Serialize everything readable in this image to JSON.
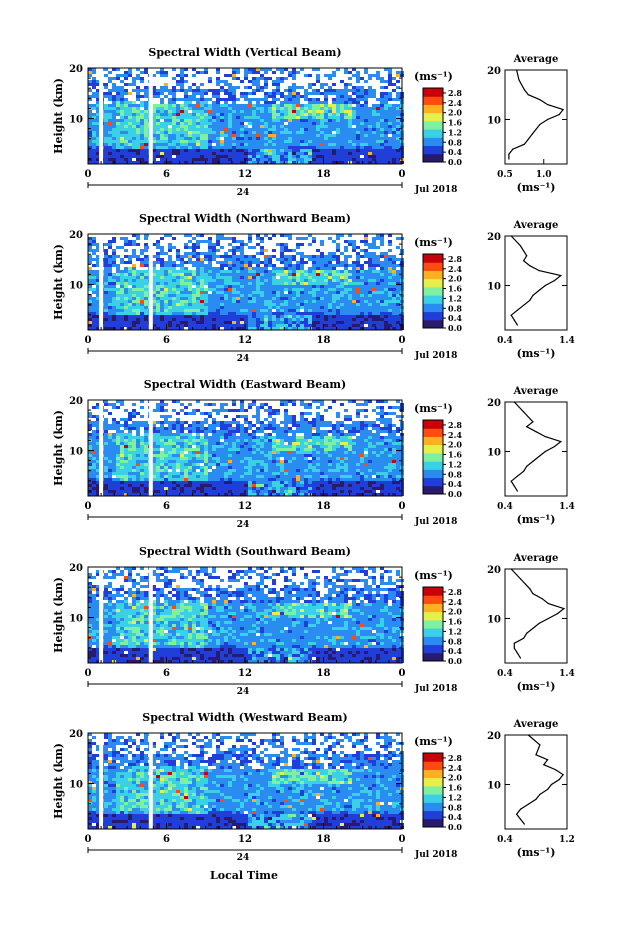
{
  "figure": {
    "xlabel": "Local Time",
    "date_label": "Jul 2018",
    "day_label": "24",
    "ylabel": "Height (km)",
    "unit_label": "(ms⁻¹)",
    "profile_title": "Average",
    "profile_xlabel": "(ms⁻¹)"
  },
  "colorbar": {
    "ticks": [
      "2.8",
      "2.4",
      "2.0",
      "1.6",
      "1.2",
      "0.8",
      "0.4",
      "0.0"
    ],
    "range": [
      0,
      3.0
    ],
    "colors": [
      "#2a1a6e",
      "#1f3fd8",
      "#2a8cf0",
      "#3ad0e6",
      "#7ff0a0",
      "#e6f04a",
      "#ffb020",
      "#ff4a10",
      "#c8000a"
    ]
  },
  "chart_data": [
    {
      "type": "heatmap",
      "title": "Spectral Width (Vertical Beam)",
      "xlabel": "Local Time",
      "ylabel": "Height (km)",
      "xticks": [
        "0",
        "6",
        "12",
        "18",
        "0"
      ],
      "yticks": [
        "20",
        "10"
      ],
      "xlim": [
        0,
        24
      ],
      "ylim": [
        1,
        20
      ],
      "gaps_local_time": [
        1.0,
        4.8
      ],
      "profile": {
        "title": "Average",
        "xlabel": "(ms⁻¹)",
        "xticks": [
          "0.5",
          "1.0"
        ],
        "yticks": [
          "20",
          "10"
        ],
        "xlim": [
          0.5,
          1.3
        ],
        "height": [
          20,
          18,
          16,
          15,
          14,
          13,
          12,
          11,
          10,
          9,
          8,
          7,
          6,
          5,
          4,
          3,
          2
        ],
        "width": [
          0.65,
          0.68,
          0.75,
          0.8,
          0.95,
          1.05,
          1.25,
          1.2,
          1.05,
          0.95,
          0.9,
          0.85,
          0.8,
          0.75,
          0.6,
          0.55,
          0.55
        ]
      }
    },
    {
      "type": "heatmap",
      "title": "Spectral Width (Northward Beam)",
      "xlabel": "Local Time",
      "ylabel": "Height (km)",
      "xticks": [
        "0",
        "6",
        "12",
        "18",
        "0"
      ],
      "yticks": [
        "20",
        "10"
      ],
      "xlim": [
        0,
        24
      ],
      "ylim": [
        1,
        20
      ],
      "gaps_local_time": [
        1.0,
        4.8
      ],
      "profile": {
        "title": "Average",
        "xlabel": "(ms⁻¹)",
        "xticks": [
          "0.4",
          "1.4"
        ],
        "yticks": [
          "20",
          "10"
        ],
        "xlim": [
          0.4,
          1.4
        ],
        "height": [
          20,
          18,
          16,
          15,
          14,
          13,
          12,
          11,
          10,
          9,
          8,
          7,
          6,
          5,
          4,
          3,
          2
        ],
        "width": [
          0.5,
          0.65,
          0.75,
          0.7,
          0.8,
          0.95,
          1.3,
          1.2,
          1.05,
          0.95,
          0.85,
          0.8,
          0.7,
          0.6,
          0.5,
          0.55,
          0.6
        ]
      }
    },
    {
      "type": "heatmap",
      "title": "Spectral Width (Eastward Beam)",
      "xlabel": "Local Time",
      "ylabel": "Height (km)",
      "xticks": [
        "0",
        "6",
        "12",
        "18",
        "0"
      ],
      "yticks": [
        "20",
        "10"
      ],
      "xlim": [
        0,
        24
      ],
      "ylim": [
        1,
        20
      ],
      "gaps_local_time": [
        1.0,
        4.8
      ],
      "profile": {
        "title": "Average",
        "xlabel": "(ms⁻¹)",
        "xticks": [
          "0.4",
          "1.4"
        ],
        "yticks": [
          "20",
          "10"
        ],
        "xlim": [
          0.4,
          1.4
        ],
        "height": [
          20,
          18,
          16,
          15,
          14,
          13,
          12,
          11,
          10,
          9,
          8,
          7,
          6,
          5,
          4,
          3,
          2
        ],
        "width": [
          0.55,
          0.7,
          0.85,
          0.75,
          0.9,
          1.05,
          1.3,
          1.2,
          1.05,
          0.95,
          0.85,
          0.75,
          0.7,
          0.6,
          0.5,
          0.55,
          0.6
        ]
      }
    },
    {
      "type": "heatmap",
      "title": "Spectral Width (Southward Beam)",
      "xlabel": "Local Time",
      "ylabel": "Height (km)",
      "xticks": [
        "0",
        "6",
        "12",
        "18",
        "0"
      ],
      "yticks": [
        "20",
        "10"
      ],
      "xlim": [
        0,
        24
      ],
      "ylim": [
        1,
        20
      ],
      "gaps_local_time": [
        1.0,
        4.8
      ],
      "profile": {
        "title": "Average",
        "xlabel": "(ms⁻¹)",
        "xticks": [
          "0.4",
          "1.4"
        ],
        "yticks": [
          "20",
          "10"
        ],
        "xlim": [
          0.4,
          1.4
        ],
        "height": [
          20,
          18,
          16,
          15,
          14,
          13,
          12,
          11,
          10,
          9,
          8,
          7,
          6,
          5,
          4,
          3,
          2
        ],
        "width": [
          0.5,
          0.65,
          0.8,
          0.85,
          1.0,
          1.1,
          1.35,
          1.25,
          1.1,
          0.95,
          0.85,
          0.75,
          0.7,
          0.55,
          0.55,
          0.6,
          0.65
        ]
      }
    },
    {
      "type": "heatmap",
      "title": "Spectral Width (Westward Beam)",
      "xlabel": "Local Time",
      "ylabel": "Height (km)",
      "xticks": [
        "0",
        "6",
        "12",
        "18",
        "0"
      ],
      "yticks": [
        "20",
        "10"
      ],
      "xlim": [
        0,
        24
      ],
      "ylim": [
        1,
        20
      ],
      "gaps_local_time": [
        1.0,
        4.8
      ],
      "profile": {
        "title": "Average",
        "xlabel": "(ms⁻¹)",
        "xticks": [
          "0.4",
          "1.2"
        ],
        "yticks": [
          "20",
          "10"
        ],
        "xlim": [
          0.4,
          1.2
        ],
        "height": [
          20,
          18,
          16,
          15,
          14,
          13,
          12,
          11,
          10,
          9,
          8,
          7,
          6,
          5,
          4,
          3,
          2
        ],
        "width": [
          0.7,
          0.85,
          0.8,
          0.95,
          0.9,
          1.05,
          1.15,
          1.1,
          1.0,
          0.95,
          0.85,
          0.8,
          0.7,
          0.6,
          0.55,
          0.6,
          0.65
        ]
      }
    }
  ]
}
